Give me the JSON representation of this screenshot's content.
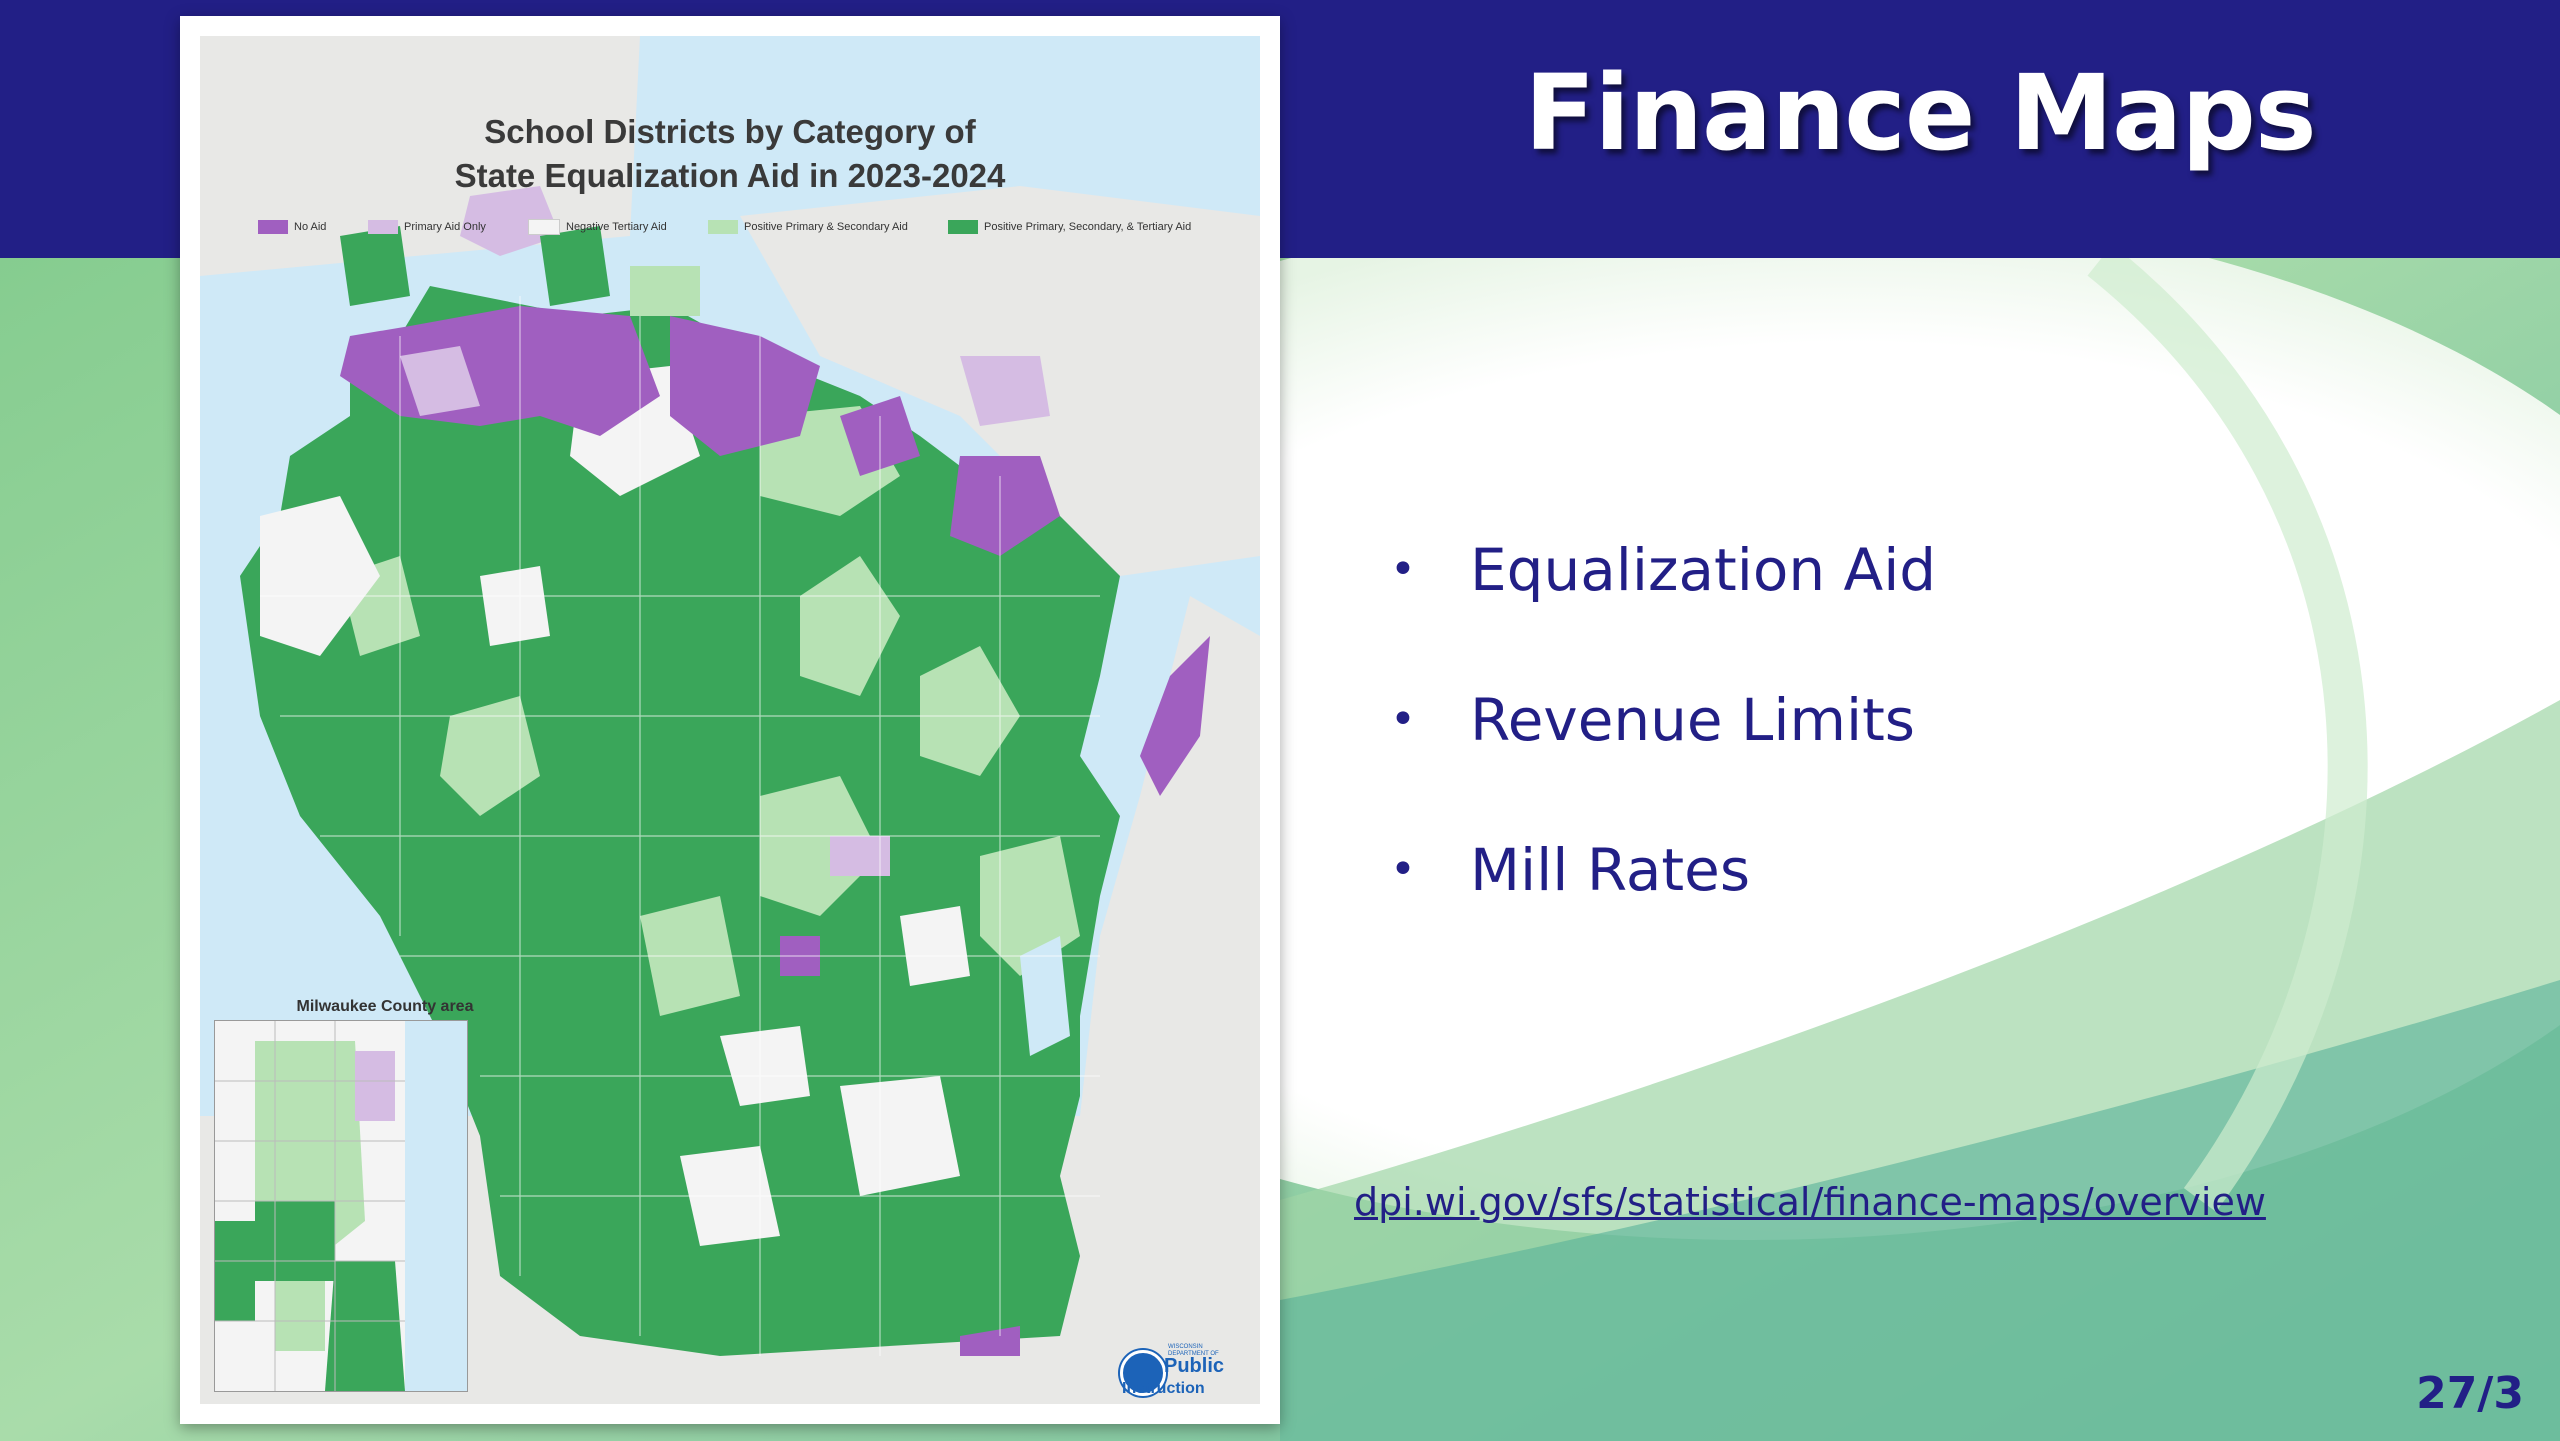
{
  "slide": {
    "title": "Finance Maps",
    "bullets": [
      "Equalization Aid",
      "Revenue Limits",
      "Mill Rates"
    ],
    "link": "dpi.wi.gov/sfs/statistical/finance-maps/overview",
    "page_number": "27/3",
    "colors": {
      "title_bar": "#221f86",
      "text": "#221f86",
      "bg_green": "#8fcf9b"
    }
  },
  "map": {
    "title_line1": "School Districts by Category of",
    "title_line2": "State Equalization Aid in 2023-2024",
    "legend": [
      {
        "label": "No Aid",
        "color": "#a05fc0"
      },
      {
        "label": "Primary Aid Only",
        "color": "#d5bce3"
      },
      {
        "label": "Negative Tertiary Aid",
        "color": "#f4f4f4"
      },
      {
        "label": "Positive Primary & Secondary Aid",
        "color": "#b7e2b4"
      },
      {
        "label": "Positive Primary, Secondary, & Tertiary Aid",
        "color": "#3aa65a"
      }
    ],
    "inset_title": "Milwaukee County area",
    "logo": {
      "small_text": "WISCONSIN DEPARTMENT OF",
      "big_text": "Public",
      "big_text2": "Instruction"
    }
  }
}
